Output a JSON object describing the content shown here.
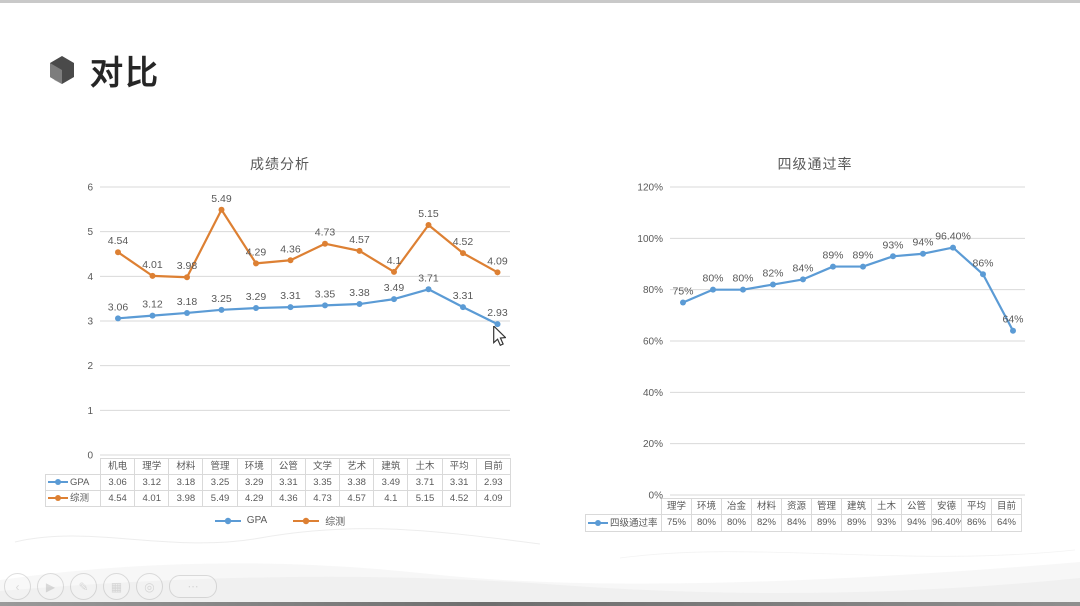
{
  "slide": {
    "title": "对比"
  },
  "colors": {
    "series_blue": "#5b9bd5",
    "series_orange": "#dd8033",
    "grid": "#d9d9d9",
    "text": "#595959"
  },
  "chart_data": [
    {
      "type": "line",
      "title": "成绩分析",
      "categories": [
        "机电",
        "理学",
        "材料",
        "管理",
        "环境",
        "公管",
        "文学",
        "艺术",
        "建筑",
        "土木",
        "平均",
        "目前"
      ],
      "series": [
        {
          "name": "GPA",
          "color": "#5b9bd5",
          "values": [
            3.06,
            3.12,
            3.18,
            3.25,
            3.29,
            3.31,
            3.35,
            3.38,
            3.49,
            3.71,
            3.31,
            2.93
          ],
          "labels": [
            "3.06",
            "3.12",
            "3.18",
            "3.25",
            "3.29",
            "3.31",
            "3.35",
            "3.38",
            "3.49",
            "3.71",
            "3.31",
            "2.93"
          ]
        },
        {
          "name": "综测",
          "color": "#dd8033",
          "values": [
            4.54,
            4.01,
            3.98,
            5.49,
            4.29,
            4.36,
            4.73,
            4.57,
            4.1,
            5.15,
            4.52,
            4.09
          ],
          "labels": [
            "4.54",
            "4.01",
            "3.98",
            "5.49",
            "4.29",
            "4.36",
            "4.73",
            "4.57",
            "4.1",
            "5.15",
            "4.52",
            "4.09"
          ]
        }
      ],
      "ylim": [
        0,
        6
      ],
      "ytick_values": [
        6,
        5,
        4,
        3,
        2,
        1,
        0
      ],
      "ytick_labels": [
        "6",
        "5",
        "4",
        "3",
        "2",
        "1",
        "0"
      ],
      "grid": true,
      "legend_position": "bottom",
      "legend": [
        "GPA",
        "综测"
      ],
      "data_table": true
    },
    {
      "type": "line",
      "title": "四级通过率",
      "categories": [
        "理学",
        "环境",
        "冶金",
        "材料",
        "资源",
        "管理",
        "建筑",
        "土木",
        "公管",
        "安德",
        "平均",
        "目前"
      ],
      "series": [
        {
          "name": "四级通过率",
          "color": "#5b9bd5",
          "values": [
            75,
            80,
            80,
            82,
            84,
            89,
            89,
            93,
            94,
            96.4,
            86,
            64
          ],
          "labels": [
            "75%",
            "80%",
            "80%",
            "82%",
            "84%",
            "89%",
            "89%",
            "93%",
            "94%",
            "96.40%",
            "86%",
            "64%"
          ]
        }
      ],
      "ylim": [
        0,
        120
      ],
      "ytick_values": [
        120,
        100,
        80,
        60,
        40,
        20,
        0
      ],
      "ytick_labels": [
        "120%",
        "100%",
        "80%",
        "60%",
        "40%",
        "20%",
        "0%"
      ],
      "grid": true,
      "legend_position": "table",
      "data_table": true
    }
  ],
  "player_controls": [
    {
      "name": "back-icon",
      "glyph": "‹"
    },
    {
      "name": "play-icon",
      "glyph": "▶"
    },
    {
      "name": "pen-icon",
      "glyph": "✎"
    },
    {
      "name": "grid-icon",
      "glyph": "▦"
    },
    {
      "name": "laser-icon",
      "glyph": "◎"
    },
    {
      "name": "more-icon",
      "glyph": "⋯"
    }
  ]
}
